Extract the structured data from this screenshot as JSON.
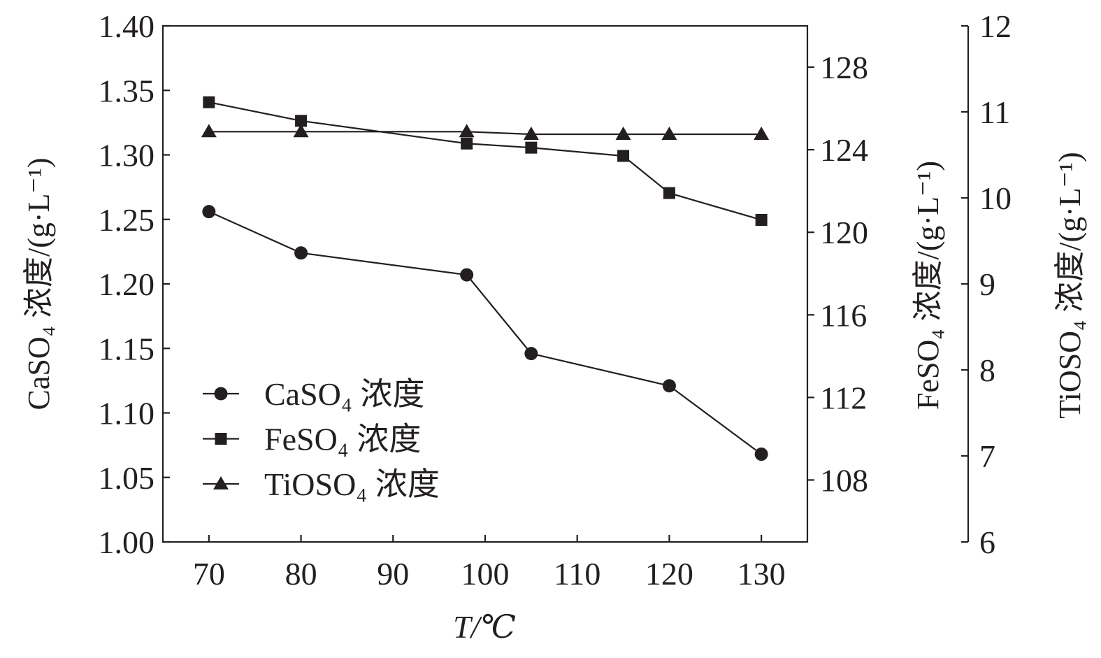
{
  "chart_data": {
    "type": "line",
    "xlabel": "T/℃",
    "x_ticks": [
      70,
      80,
      90,
      100,
      110,
      120,
      130
    ],
    "xlim": [
      65,
      135
    ],
    "axes": {
      "left": {
        "label": "CaSO₄ 浓度/(g·L⁻¹)",
        "ylim": [
          1.0,
          1.4
        ],
        "ticks": [
          "1.00",
          "1.05",
          "1.10",
          "1.15",
          "1.20",
          "1.25",
          "1.30",
          "1.35",
          "1.40"
        ]
      },
      "right1": {
        "label": "FeSO₄ 浓度/(g·L⁻¹)",
        "ylim": [
          105,
          130
        ],
        "ticks": [
          "108",
          "112",
          "116",
          "120",
          "124",
          "128"
        ]
      },
      "right2": {
        "label": "TiOSO₄ 浓度/(g·L⁻¹)",
        "ylim": [
          6,
          12
        ],
        "ticks": [
          "6",
          "7",
          "8",
          "9",
          "10",
          "11",
          "12"
        ]
      }
    },
    "series": [
      {
        "name": "CaSO₄ 浓度",
        "marker": "circle",
        "axis": "left",
        "x": [
          70,
          80,
          98,
          105,
          120,
          130
        ],
        "values": [
          1.256,
          1.224,
          1.207,
          1.146,
          1.121,
          1.068
        ]
      },
      {
        "name": "FeSO₄ 浓度",
        "marker": "square",
        "axis": "right1",
        "x": [
          70,
          80,
          98,
          105,
          115,
          120,
          130
        ],
        "values": [
          126.3,
          125.4,
          124.3,
          124.1,
          123.7,
          121.9,
          120.6
        ]
      },
      {
        "name": "TiOSO₄ 浓度",
        "marker": "triangle",
        "axis": "right2",
        "x": [
          70,
          80,
          98,
          105,
          115,
          120,
          130
        ],
        "values": [
          10.77,
          10.77,
          10.77,
          10.74,
          10.74,
          10.74,
          10.74
        ]
      }
    ],
    "legend": "bottom-left",
    "grid": false,
    "color": "#231f20"
  }
}
